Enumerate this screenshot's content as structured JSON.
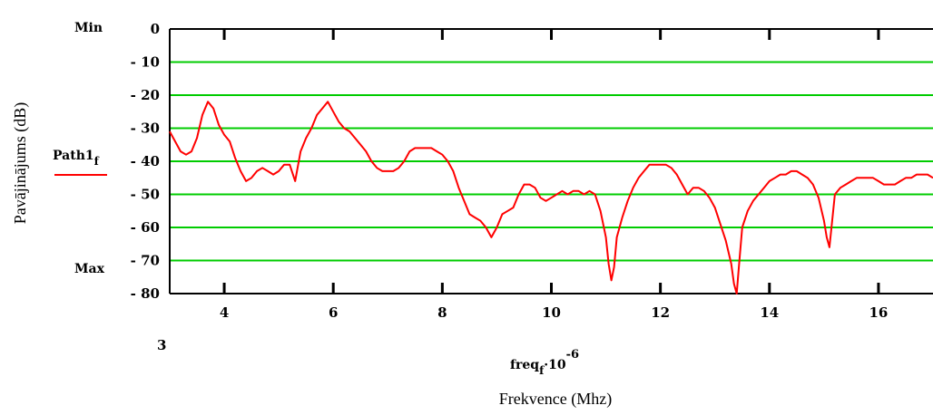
{
  "chart_data": {
    "type": "line",
    "xlabel": "Frekvence (Mhz)",
    "ylabel": "Pavājinājums (dB)",
    "x_expression": {
      "base": "freq",
      "sub": "f",
      "mid": "·10",
      "sup": "-6"
    },
    "legend": {
      "name": "Path1",
      "sub": "f",
      "placement": "left"
    },
    "ymax_label": "Min",
    "ymin_label": "Max",
    "xmin_label": "3",
    "xlim": [
      3,
      17
    ],
    "ylim": [
      -80,
      0
    ],
    "xticks": [
      4,
      6,
      8,
      10,
      12,
      14,
      16
    ],
    "yticks": [
      0,
      -10,
      -20,
      -30,
      -40,
      -50,
      -60,
      -70,
      -80
    ],
    "grid": "horizontal",
    "colors": {
      "series": "#ff0000",
      "grid": "#00cc00",
      "frame": "#000000"
    },
    "series": [
      {
        "x": [
          3.0,
          3.1,
          3.2,
          3.3,
          3.4,
          3.5,
          3.6,
          3.7,
          3.8,
          3.9,
          4.0,
          4.1,
          4.2,
          4.3,
          4.4,
          4.5,
          4.6,
          4.7,
          4.8,
          4.9,
          5.0,
          5.1,
          5.2,
          5.3,
          5.4,
          5.5,
          5.6,
          5.7,
          5.8,
          5.9,
          6.0,
          6.1,
          6.2,
          6.3,
          6.4,
          6.5,
          6.6,
          6.7,
          6.8,
          6.9,
          7.0,
          7.1,
          7.2,
          7.3,
          7.4,
          7.5,
          7.6,
          7.7,
          7.8,
          7.9,
          8.0,
          8.1,
          8.2,
          8.3,
          8.4,
          8.5,
          8.6,
          8.7,
          8.8,
          8.9,
          9.0,
          9.1,
          9.2,
          9.3,
          9.4,
          9.5,
          9.6,
          9.7,
          9.8,
          9.9,
          10.0,
          10.1,
          10.2,
          10.3,
          10.4,
          10.5,
          10.6,
          10.7,
          10.8,
          10.9,
          11.0,
          11.05,
          11.1,
          11.15,
          11.2,
          11.3,
          11.4,
          11.5,
          11.6,
          11.7,
          11.8,
          11.9,
          12.0,
          12.1,
          12.2,
          12.3,
          12.4,
          12.5,
          12.6,
          12.7,
          12.8,
          12.9,
          13.0,
          13.1,
          13.2,
          13.3,
          13.35,
          13.4,
          13.45,
          13.5,
          13.6,
          13.7,
          13.8,
          13.9,
          14.0,
          14.1,
          14.2,
          14.3,
          14.4,
          14.5,
          14.6,
          14.7,
          14.8,
          14.9,
          15.0,
          15.05,
          15.1,
          15.15,
          15.2,
          15.3,
          15.4,
          15.5,
          15.6,
          15.7,
          15.8,
          15.9,
          16.0,
          16.1,
          16.2,
          16.3,
          16.4,
          16.5,
          16.6,
          16.7,
          16.8,
          16.9,
          17.0
        ],
        "values": [
          -31,
          -34,
          -37,
          -38,
          -37,
          -33,
          -26,
          -22,
          -24,
          -29,
          -32,
          -34,
          -39,
          -43,
          -46,
          -45,
          -43,
          -42,
          -43,
          -44,
          -43,
          -41,
          -41,
          -46,
          -37,
          -33,
          -30,
          -26,
          -24,
          -22,
          -25,
          -28,
          -30,
          -31,
          -33,
          -35,
          -37,
          -40,
          -42,
          -43,
          -43,
          -43,
          -42,
          -40,
          -37,
          -36,
          -36,
          -36,
          -36,
          -37,
          -38,
          -40,
          -43,
          -48,
          -52,
          -56,
          -57,
          -58,
          -60,
          -63,
          -60,
          -56,
          -55,
          -54,
          -50,
          -47,
          -47,
          -48,
          -51,
          -52,
          -51,
          -50,
          -49,
          -50,
          -49,
          -49,
          -50,
          -49,
          -50,
          -55,
          -63,
          -71,
          -76,
          -72,
          -63,
          -57,
          -52,
          -48,
          -45,
          -43,
          -41,
          -41,
          -41,
          -41,
          -42,
          -44,
          -47,
          -50,
          -48,
          -48,
          -49,
          -51,
          -54,
          -59,
          -64,
          -71,
          -77,
          -80,
          -70,
          -60,
          -55,
          -52,
          -50,
          -48,
          -46,
          -45,
          -44,
          -44,
          -43,
          -43,
          -44,
          -45,
          -47,
          -51,
          -58,
          -63,
          -66,
          -58,
          -50,
          -48,
          -47,
          -46,
          -45,
          -45,
          -45,
          -45,
          -46,
          -47,
          -47,
          -47,
          -46,
          -45,
          -45,
          -44,
          -44,
          -44,
          -45
        ]
      }
    ]
  }
}
